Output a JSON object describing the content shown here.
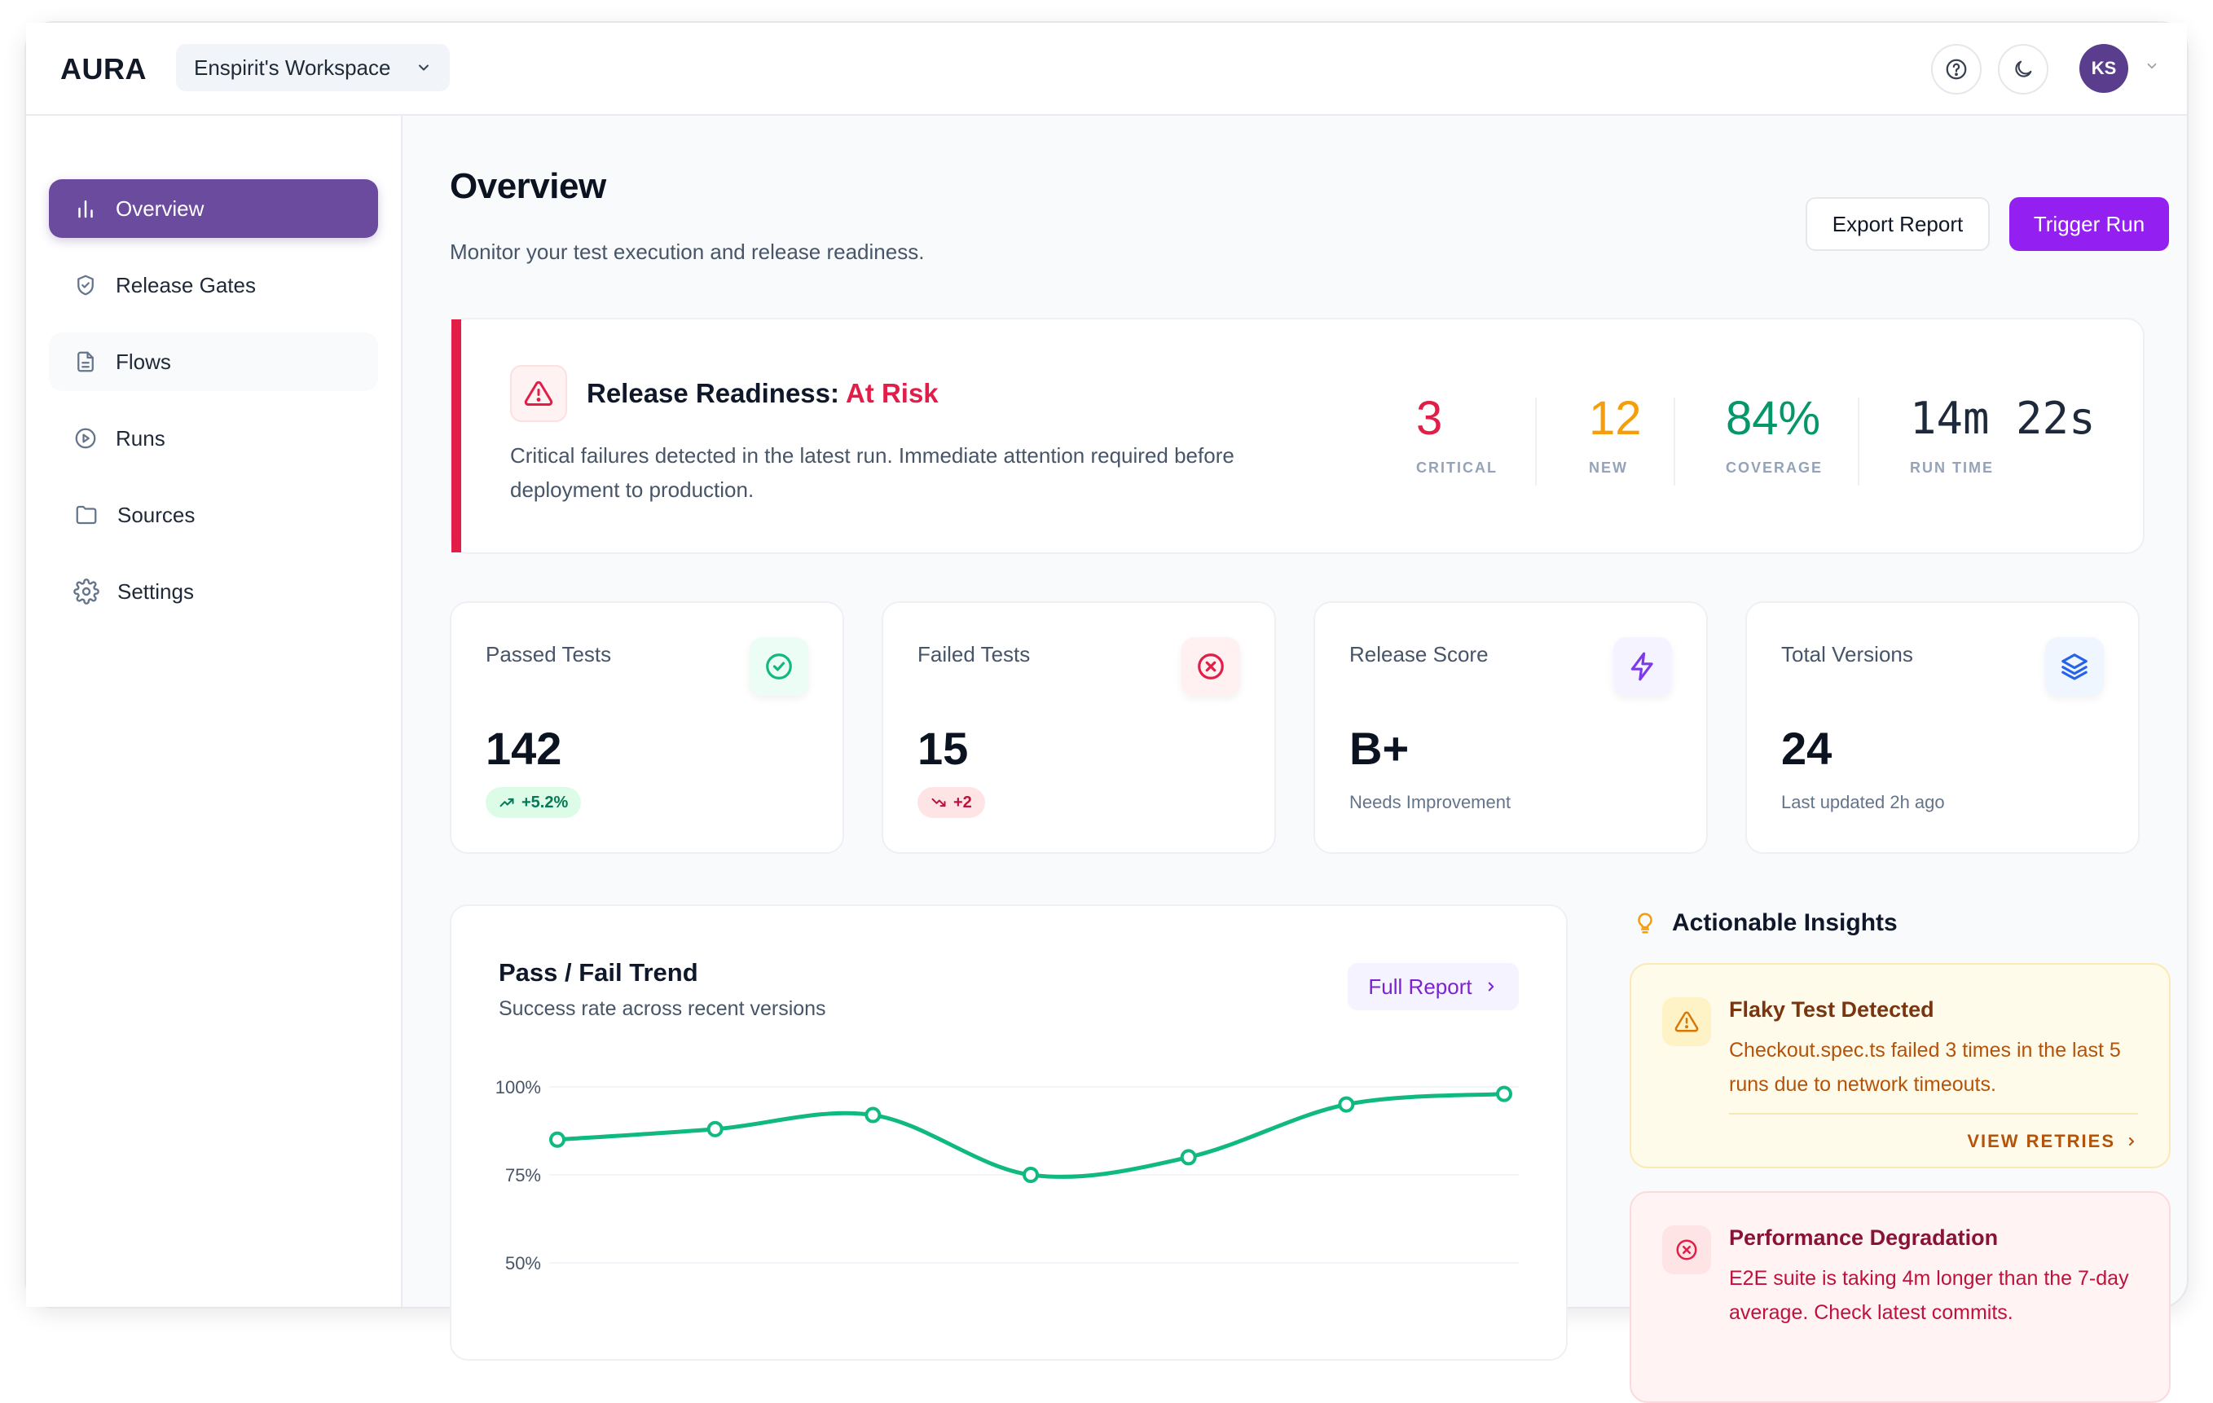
{
  "app": {
    "logo": "AURA",
    "workspace": "Enspirit's Workspace",
    "avatar_initials": "KS"
  },
  "header": {
    "help_icon": "help-circle-icon",
    "theme_icon": "moon-icon"
  },
  "sidebar": {
    "items": [
      {
        "label": "Overview",
        "icon": "bar-chart-icon",
        "active": true
      },
      {
        "label": "Release Gates",
        "icon": "shield-check-icon"
      },
      {
        "label": "Flows",
        "icon": "document-icon"
      },
      {
        "label": "Runs",
        "icon": "play-circle-icon"
      },
      {
        "label": "Sources",
        "icon": "folder-icon"
      },
      {
        "label": "Settings",
        "icon": "gear-icon"
      }
    ]
  },
  "page": {
    "title": "Overview",
    "subtitle": "Monitor your test execution and release readiness.",
    "export_label": "Export Report",
    "trigger_label": "Trigger Run"
  },
  "readiness": {
    "title_prefix": "Release Readiness: ",
    "status": "At Risk",
    "description": "Critical failures detected in the latest run. Immediate attention required before deployment to production.",
    "metrics": [
      {
        "value": "3",
        "label": "CRITICAL",
        "color": "#e11d48"
      },
      {
        "value": "12",
        "label": "NEW",
        "color": "#f59e0b"
      },
      {
        "value": "84%",
        "label": "COVERAGE",
        "color": "#059669"
      },
      {
        "value": "14m 22s",
        "label": "RUN TIME",
        "color": "#1e293b"
      }
    ]
  },
  "stats": [
    {
      "label": "Passed Tests",
      "value": "142",
      "badge": "+5.2%",
      "icon": "check-circle-icon",
      "color": "#10b981"
    },
    {
      "label": "Failed Tests",
      "value": "15",
      "badge": "+2",
      "icon": "x-circle-icon",
      "color": "#e11d48"
    },
    {
      "label": "Release Score",
      "value": "B+",
      "caption": "Needs Improvement",
      "icon": "lightning-icon",
      "color": "#7c3aed"
    },
    {
      "label": "Total Versions",
      "value": "24",
      "caption": "Last updated 2h ago",
      "icon": "layers-icon",
      "color": "#2563eb"
    }
  ],
  "trend": {
    "title": "Pass / Fail Trend",
    "subtitle": "Success rate across recent versions",
    "action": "Full Report"
  },
  "chart_data": {
    "type": "line",
    "title": "Pass / Fail Trend",
    "subtitle": "Success rate across recent versions",
    "y_ticks": [
      "100%",
      "75%",
      "50%"
    ],
    "ylim": [
      50,
      100
    ],
    "series": [
      {
        "values": [
          85,
          88,
          92,
          75,
          80,
          95,
          98
        ],
        "color": "#10b981"
      }
    ],
    "grid": true
  },
  "insights": {
    "heading": "Actionable Insights",
    "items": [
      {
        "title": "Flaky Test Detected",
        "description": "Checkout.spec.ts failed 3 times in the last 5 runs due to network timeouts.",
        "action": "VIEW RETRIES"
      },
      {
        "title": "Performance Degradation",
        "description": "E2E suite is taking 4m longer than the 7-day average. Check latest commits."
      }
    ]
  }
}
